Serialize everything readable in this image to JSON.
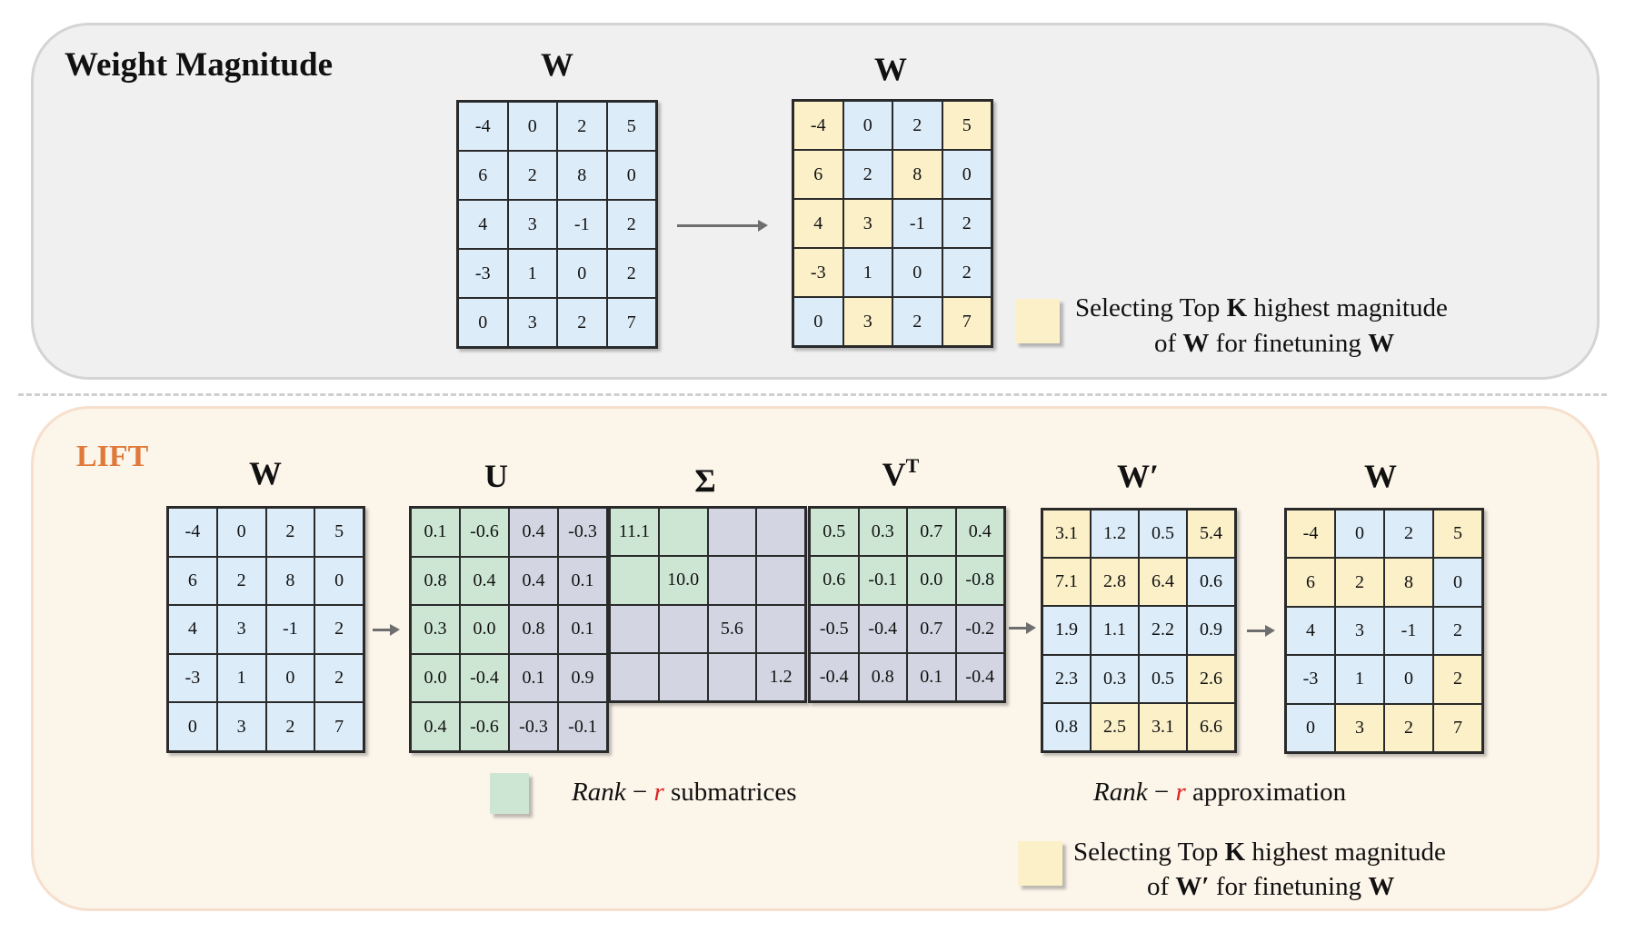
{
  "colors": {
    "blue": "#dcecf9",
    "yellow": "#fbf0c8",
    "green": "#cde6d3",
    "gray": "#d3d6e2",
    "lift": "#e07a3a",
    "rank_r": "#e02020"
  },
  "top": {
    "title": "Weight Magnitude",
    "matrix_in": {
      "label": "W",
      "values": [
        [
          "-4",
          "0",
          "2",
          "5"
        ],
        [
          "6",
          "2",
          "8",
          "0"
        ],
        [
          "4",
          "3",
          "-1",
          "2"
        ],
        [
          "-3",
          "1",
          "0",
          "2"
        ],
        [
          "0",
          "3",
          "2",
          "7"
        ]
      ],
      "colors": [
        [
          "b",
          "b",
          "b",
          "b"
        ],
        [
          "b",
          "b",
          "b",
          "b"
        ],
        [
          "b",
          "b",
          "b",
          "b"
        ],
        [
          "b",
          "b",
          "b",
          "b"
        ],
        [
          "b",
          "b",
          "b",
          "b"
        ]
      ]
    },
    "matrix_out": {
      "label": "W",
      "values": [
        [
          "-4",
          "0",
          "2",
          "5"
        ],
        [
          "6",
          "2",
          "8",
          "0"
        ],
        [
          "4",
          "3",
          "-1",
          "2"
        ],
        [
          "-3",
          "1",
          "0",
          "2"
        ],
        [
          "0",
          "3",
          "2",
          "7"
        ]
      ],
      "colors": [
        [
          "y",
          "b",
          "b",
          "y"
        ],
        [
          "y",
          "b",
          "y",
          "b"
        ],
        [
          "y",
          "y",
          "b",
          "b"
        ],
        [
          "y",
          "b",
          "b",
          "b"
        ],
        [
          "b",
          "y",
          "b",
          "y"
        ]
      ]
    },
    "legend": {
      "line1_a": "Selecting Top ",
      "line1_k": "K",
      "line1_b": " highest magnitude",
      "line2_a": "of ",
      "line2_w": "W",
      "line2_b": " for finetuning ",
      "line2_w2": "W"
    }
  },
  "bottom": {
    "title": "LIFT",
    "W": {
      "label": "W",
      "values": [
        [
          "-4",
          "0",
          "2",
          "5"
        ],
        [
          "6",
          "2",
          "8",
          "0"
        ],
        [
          "4",
          "3",
          "-1",
          "2"
        ],
        [
          "-3",
          "1",
          "0",
          "2"
        ],
        [
          "0",
          "3",
          "2",
          "7"
        ]
      ],
      "colors": [
        [
          "b",
          "b",
          "b",
          "b"
        ],
        [
          "b",
          "b",
          "b",
          "b"
        ],
        [
          "b",
          "b",
          "b",
          "b"
        ],
        [
          "b",
          "b",
          "b",
          "b"
        ],
        [
          "b",
          "b",
          "b",
          "b"
        ]
      ]
    },
    "U": {
      "label": "U",
      "values": [
        [
          "0.1",
          "-0.6",
          "0.4",
          "-0.3"
        ],
        [
          "0.8",
          "0.4",
          "0.4",
          "0.1"
        ],
        [
          "0.3",
          "0.0",
          "0.8",
          "0.1"
        ],
        [
          "0.0",
          "-0.4",
          "0.1",
          "0.9"
        ],
        [
          "0.4",
          "-0.6",
          "-0.3",
          "-0.1"
        ]
      ],
      "colors": [
        [
          "g",
          "g",
          "p",
          "p"
        ],
        [
          "g",
          "g",
          "p",
          "p"
        ],
        [
          "g",
          "g",
          "p",
          "p"
        ],
        [
          "g",
          "g",
          "p",
          "p"
        ],
        [
          "g",
          "g",
          "p",
          "p"
        ]
      ]
    },
    "Sigma": {
      "label": "Σ",
      "values": [
        [
          "11.1",
          "",
          "",
          ""
        ],
        [
          "",
          "10.0",
          "",
          ""
        ],
        [
          "",
          "",
          "5.6",
          ""
        ],
        [
          "",
          "",
          "",
          "1.2"
        ]
      ],
      "colors": [
        [
          "g",
          "g",
          "p",
          "p"
        ],
        [
          "g",
          "g",
          "p",
          "p"
        ],
        [
          "p",
          "p",
          "p",
          "p"
        ],
        [
          "p",
          "p",
          "p",
          "p"
        ]
      ]
    },
    "VT": {
      "label": "V",
      "sup": "T",
      "values": [
        [
          "0.5",
          "0.3",
          "0.7",
          "0.4"
        ],
        [
          "0.6",
          "-0.1",
          "0.0",
          "-0.8"
        ],
        [
          "-0.5",
          "-0.4",
          "0.7",
          "-0.2"
        ],
        [
          "-0.4",
          "0.8",
          "0.1",
          "-0.4"
        ]
      ],
      "colors": [
        [
          "g",
          "g",
          "g",
          "g"
        ],
        [
          "g",
          "g",
          "g",
          "g"
        ],
        [
          "p",
          "p",
          "p",
          "p"
        ],
        [
          "p",
          "p",
          "p",
          "p"
        ]
      ]
    },
    "Wprime": {
      "label": "W′",
      "values": [
        [
          "3.1",
          "1.2",
          "0.5",
          "5.4"
        ],
        [
          "7.1",
          "2.8",
          "6.4",
          "0.6"
        ],
        [
          "1.9",
          "1.1",
          "2.2",
          "0.9"
        ],
        [
          "2.3",
          "0.3",
          "0.5",
          "2.6"
        ],
        [
          "0.8",
          "2.5",
          "3.1",
          "6.6"
        ]
      ],
      "colors": [
        [
          "y",
          "b",
          "b",
          "y"
        ],
        [
          "y",
          "y",
          "y",
          "b"
        ],
        [
          "b",
          "b",
          "b",
          "b"
        ],
        [
          "b",
          "b",
          "b",
          "y"
        ],
        [
          "b",
          "y",
          "y",
          "y"
        ]
      ]
    },
    "Wout": {
      "label": "W",
      "values": [
        [
          "-4",
          "0",
          "2",
          "5"
        ],
        [
          "6",
          "2",
          "8",
          "0"
        ],
        [
          "4",
          "3",
          "-1",
          "2"
        ],
        [
          "-3",
          "1",
          "0",
          "2"
        ],
        [
          "0",
          "3",
          "2",
          "7"
        ]
      ],
      "colors": [
        [
          "y",
          "b",
          "b",
          "y"
        ],
        [
          "y",
          "y",
          "y",
          "b"
        ],
        [
          "b",
          "b",
          "b",
          "b"
        ],
        [
          "b",
          "b",
          "b",
          "y"
        ],
        [
          "b",
          "y",
          "y",
          "y"
        ]
      ]
    },
    "legend_submatrices": {
      "rank": "Rank",
      "minus": " − ",
      "r": "r",
      "text": " submatrices"
    },
    "legend_approx": {
      "rank": "Rank",
      "minus": " − ",
      "r": "r",
      "text": " approximation"
    },
    "legend": {
      "line1_a": "Selecting Top ",
      "line1_k": "K",
      "line1_b": " highest magnitude",
      "line2_a": "of ",
      "line2_w": "W′",
      "line2_b": " for finetuning ",
      "line2_w2": "W"
    }
  }
}
